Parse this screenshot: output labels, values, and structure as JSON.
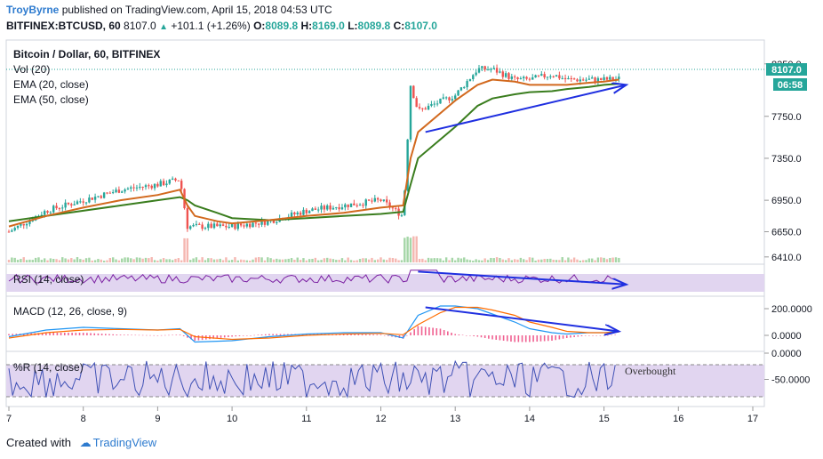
{
  "header": {
    "user": "TroyByrne",
    "published": "published on TradingView.com, April 15, 2018 04:53 UTC",
    "symbol": "BITFINEX:BTCUSD, 60",
    "last": "8107.0",
    "change": "+101.1 (+1.26%)",
    "open_label": "O:",
    "open": "8089.8",
    "high_label": "H:",
    "high": "8169.0",
    "low_label": "L:",
    "low": "8089.8",
    "close_label": "C:",
    "close": "8107.0"
  },
  "overlay_labels": {
    "main": "Bitcoin / Dollar, 60, BITFINEX",
    "vol": "Vol (20)",
    "ema20": "EMA (20, close)",
    "ema50": "EMA (50, close)"
  },
  "price_badge": {
    "price": "8107.0",
    "countdown": "06:58"
  },
  "pane_labels": {
    "rsi": "RSI (14, close)",
    "macd": "MACD (12, 26, close, 9)",
    "wr": "%R (14, close)"
  },
  "annotations": {
    "overbought": "Overbought"
  },
  "footer": {
    "created": "Created with",
    "brand": "TradingView"
  },
  "colors": {
    "up": "#26a69a",
    "down": "#ef5350",
    "ema20": "#d2691e",
    "ema50": "#3a7d1e",
    "trendline": "#1f2fe0",
    "rsi": "#7b1fa2",
    "macd": "#2196f3",
    "signal": "#ff6d00",
    "band": "#e1d5f0",
    "wr": "#3f51b5",
    "badge_price": "#26a69a",
    "badge_time": "#26a69a"
  },
  "chart_data": [
    {
      "type": "line",
      "name": "price",
      "x_ticks": [
        "7",
        "8",
        "9",
        "10",
        "11",
        "12",
        "13",
        "14",
        "15",
        "16",
        "17"
      ],
      "y_ticks": [
        8250,
        7750,
        7350,
        6950,
        6650,
        6410
      ],
      "y_tick_labels": [
        "8250.0",
        "7750.0",
        "7350.0",
        "6950.0",
        "6650.0",
        "6410.0"
      ],
      "ylim": [
        6400,
        8350
      ],
      "x": [
        7.0,
        7.5,
        8.0,
        8.5,
        9.0,
        9.3,
        9.4,
        9.5,
        9.8,
        10.0,
        10.5,
        11.0,
        11.5,
        12.0,
        12.3,
        12.4,
        12.5,
        13.0,
        13.3,
        13.5,
        13.8,
        14.0,
        14.3,
        14.5,
        14.8,
        15.0,
        15.2
      ],
      "close": [
        6650,
        6850,
        6950,
        7050,
        7100,
        7150,
        6700,
        6700,
        6700,
        6700,
        6750,
        6850,
        6900,
        6950,
        6800,
        8050,
        7800,
        7950,
        8200,
        8200,
        8100,
        8100,
        8150,
        8100,
        8100,
        8100,
        8107
      ],
      "ema20": [
        6700,
        6800,
        6880,
        6950,
        7000,
        7050,
        6900,
        6800,
        6750,
        6730,
        6760,
        6800,
        6830,
        6880,
        6900,
        7350,
        7600,
        7900,
        8050,
        8100,
        8080,
        8050,
        8050,
        8050,
        8070,
        8080,
        8100
      ],
      "ema50": [
        6750,
        6800,
        6850,
        6900,
        6950,
        6980,
        6950,
        6900,
        6830,
        6780,
        6760,
        6780,
        6800,
        6820,
        6840,
        7100,
        7350,
        7650,
        7850,
        7920,
        7960,
        7980,
        7990,
        8010,
        8030,
        8050,
        8060
      ],
      "trendlines": [
        {
          "from": [
            12.6,
            7600
          ],
          "to": [
            15.3,
            8050
          ]
        }
      ]
    },
    {
      "type": "line",
      "name": "macd",
      "y_ticks": [
        200,
        0
      ],
      "y_tick_labels": [
        "200.0000",
        "0.0000"
      ],
      "ylim": [
        -100,
        260
      ],
      "x": [
        7.0,
        7.5,
        8.0,
        8.5,
        9.0,
        9.3,
        9.5,
        10.0,
        10.5,
        11.0,
        11.5,
        12.0,
        12.3,
        12.5,
        12.8,
        13.0,
        13.3,
        13.5,
        13.8,
        14.0,
        14.3,
        14.5,
        14.8,
        15.0,
        15.2
      ],
      "macd": [
        -10,
        40,
        60,
        50,
        40,
        50,
        -50,
        -40,
        -10,
        10,
        20,
        20,
        -20,
        150,
        220,
        220,
        200,
        160,
        100,
        50,
        20,
        10,
        20,
        20,
        30
      ],
      "signal": [
        -20,
        20,
        40,
        45,
        40,
        45,
        -10,
        -30,
        -20,
        0,
        10,
        15,
        5,
        80,
        170,
        210,
        210,
        190,
        150,
        100,
        60,
        30,
        20,
        20,
        25
      ],
      "trendlines": [
        {
          "from": [
            12.6,
            210
          ],
          "to": [
            15.2,
            30
          ]
        }
      ]
    },
    {
      "type": "line",
      "name": "rsi",
      "ylim": [
        0,
        100
      ],
      "trendlines": [
        {
          "from": [
            12.5,
            80
          ],
          "to": [
            15.3,
            35
          ]
        }
      ]
    },
    {
      "type": "line",
      "name": "williams_r",
      "y_ticks": [
        0,
        -50
      ],
      "y_tick_labels": [
        "0.0000",
        "-50.0000"
      ],
      "ylim": [
        -100,
        0
      ]
    }
  ]
}
